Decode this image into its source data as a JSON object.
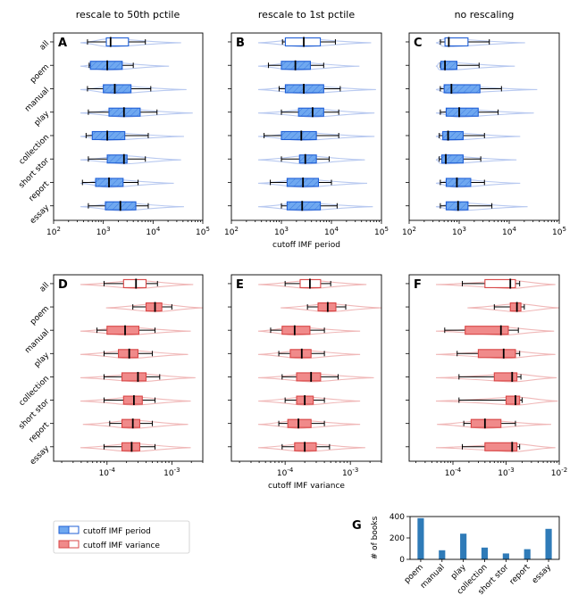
{
  "column_titles": [
    "rescale to 50th pctile",
    "rescale to 1st pctile",
    "no rescaling"
  ],
  "categories": [
    "all",
    "poem",
    "manual",
    "play",
    "collection",
    "short stor",
    "report",
    "essay"
  ],
  "colors": {
    "period_fill": "#6fa8f0",
    "period_edge": "#1f5fd6",
    "period_violin": "#b8c9f0",
    "variance_fill": "#f08a8a",
    "variance_edge": "#d84545",
    "variance_violin": "#f0b8b8",
    "bar": "#2f7bb8"
  },
  "legend": {
    "period_label": "cutoff IMF period",
    "variance_label": "cutoff IMF variance"
  },
  "chart_data": [
    {
      "panel": "A",
      "type": "box",
      "title": "rescale to 50th pctile",
      "xlabel": "",
      "xscale": "log",
      "xlim": [
        100,
        100000
      ],
      "ticks": [
        "10^2",
        "10^3",
        "10^4",
        "10^5"
      ],
      "series_name": "cutoff IMF period",
      "boxes": [
        {
          "cat": "all",
          "wlo": 480,
          "q1": 1150,
          "med": 1400,
          "q3": 3200,
          "whi": 7000
        },
        {
          "cat": "poem",
          "wlo": 520,
          "q1": 550,
          "med": 1200,
          "q3": 2400,
          "whi": 4000
        },
        {
          "cat": "manual",
          "wlo": 480,
          "q1": 1000,
          "med": 1700,
          "q3": 3600,
          "whi": 9000
        },
        {
          "cat": "play",
          "wlo": 500,
          "q1": 1300,
          "med": 2600,
          "q3": 5500,
          "whi": 12000
        },
        {
          "cat": "collection",
          "wlo": 450,
          "q1": 600,
          "med": 1200,
          "q3": 2700,
          "whi": 8000
        },
        {
          "cat": "short stor",
          "wlo": 500,
          "q1": 1200,
          "med": 2600,
          "q3": 3000,
          "whi": 7000
        },
        {
          "cat": "report",
          "wlo": 380,
          "q1": 700,
          "med": 1300,
          "q3": 2500,
          "whi": 5000
        },
        {
          "cat": "essay",
          "wlo": 500,
          "q1": 1100,
          "med": 2200,
          "q3": 4500,
          "whi": 8000
        }
      ]
    },
    {
      "panel": "B",
      "type": "box",
      "title": "rescale to 1st pctile",
      "xlabel": "cutoff IMF period",
      "xscale": "log",
      "xlim": [
        100,
        100000
      ],
      "ticks": [
        "10^2",
        "10^3",
        "10^4",
        "10^5"
      ],
      "series_name": "cutoff IMF period",
      "boxes": [
        {
          "cat": "all",
          "wlo": 1050,
          "q1": 1200,
          "med": 2800,
          "q3": 6000,
          "whi": 12000
        },
        {
          "cat": "poem",
          "wlo": 550,
          "q1": 1000,
          "med": 1900,
          "q3": 3800,
          "whi": 7000
        },
        {
          "cat": "manual",
          "wlo": 900,
          "q1": 1200,
          "med": 2800,
          "q3": 7000,
          "whi": 15000
        },
        {
          "cat": "play",
          "wlo": 1000,
          "q1": 2200,
          "med": 4200,
          "q3": 7000,
          "whi": 14000
        },
        {
          "cat": "collection",
          "wlo": 450,
          "q1": 1000,
          "med": 2500,
          "q3": 5000,
          "whi": 14000
        },
        {
          "cat": "short stor",
          "wlo": 1000,
          "q1": 2300,
          "med": 3000,
          "q3": 5000,
          "whi": 9000
        },
        {
          "cat": "report",
          "wlo": 600,
          "q1": 1300,
          "med": 2700,
          "q3": 5500,
          "whi": 10000
        },
        {
          "cat": "essay",
          "wlo": 1000,
          "q1": 1300,
          "med": 2600,
          "q3": 6000,
          "whi": 13000
        }
      ]
    },
    {
      "panel": "C",
      "type": "box",
      "title": "no rescaling",
      "xlabel": "",
      "xscale": "log",
      "xlim": [
        100,
        100000
      ],
      "ticks": [
        "10^2",
        "10^3",
        "10^4",
        "10^5"
      ],
      "series_name": "cutoff IMF period",
      "boxes": [
        {
          "cat": "all",
          "wlo": 420,
          "q1": 520,
          "med": 620,
          "q3": 1500,
          "whi": 4000
        },
        {
          "cat": "poem",
          "wlo": 420,
          "q1": 430,
          "med": 520,
          "q3": 900,
          "whi": 2500
        },
        {
          "cat": "manual",
          "wlo": 420,
          "q1": 500,
          "med": 700,
          "q3": 2600,
          "whi": 7000
        },
        {
          "cat": "play",
          "wlo": 420,
          "q1": 550,
          "med": 1000,
          "q3": 2400,
          "whi": 6000
        },
        {
          "cat": "collection",
          "wlo": 400,
          "q1": 470,
          "med": 600,
          "q3": 1200,
          "whi": 3200
        },
        {
          "cat": "short stor",
          "wlo": 400,
          "q1": 450,
          "med": 540,
          "q3": 1200,
          "whi": 2700
        },
        {
          "cat": "report",
          "wlo": 420,
          "q1": 550,
          "med": 900,
          "q3": 1700,
          "whi": 3200
        },
        {
          "cat": "essay",
          "wlo": 420,
          "q1": 550,
          "med": 950,
          "q3": 1500,
          "whi": 4500
        }
      ]
    },
    {
      "panel": "D",
      "type": "box",
      "title": "",
      "xlabel": "",
      "xscale": "log",
      "xlim": [
        1.5e-05,
        0.003
      ],
      "ticks": [
        "10^-4",
        "10^-3"
      ],
      "series_name": "cutoff IMF variance",
      "boxes": [
        {
          "cat": "all",
          "wlo": 9e-05,
          "q1": 0.00018,
          "med": 0.00028,
          "q3": 0.0004,
          "whi": 0.0006
        },
        {
          "cat": "poem",
          "wlo": 0.00025,
          "q1": 0.0004,
          "med": 0.00055,
          "q3": 0.0007,
          "whi": 0.001
        },
        {
          "cat": "manual",
          "wlo": 7e-05,
          "q1": 0.0001,
          "med": 0.00019,
          "q3": 0.00031,
          "whi": 0.00055
        },
        {
          "cat": "play",
          "wlo": 9e-05,
          "q1": 0.00015,
          "med": 0.00022,
          "q3": 0.0003,
          "whi": 0.0005
        },
        {
          "cat": "collection",
          "wlo": 9e-05,
          "q1": 0.00017,
          "med": 0.0003,
          "q3": 0.0004,
          "whi": 0.00065
        },
        {
          "cat": "short stor",
          "wlo": 9e-05,
          "q1": 0.00018,
          "med": 0.00026,
          "q3": 0.00035,
          "whi": 0.00055
        },
        {
          "cat": "report",
          "wlo": 0.00011,
          "q1": 0.00017,
          "med": 0.00025,
          "q3": 0.00032,
          "whi": 0.0005
        },
        {
          "cat": "essay",
          "wlo": 9e-05,
          "q1": 0.00017,
          "med": 0.00024,
          "q3": 0.00032,
          "whi": 0.00055
        }
      ]
    },
    {
      "panel": "E",
      "type": "box",
      "title": "",
      "xlabel": "cutoff IMF variance",
      "xscale": "log",
      "xlim": [
        1.5e-05,
        0.003
      ],
      "ticks": [
        "10^-4",
        "10^-3"
      ],
      "series_name": "cutoff IMF variance",
      "boxes": [
        {
          "cat": "all",
          "wlo": 0.0001,
          "q1": 0.00017,
          "med": 0.00024,
          "q3": 0.00035,
          "whi": 0.0005
        },
        {
          "cat": "poem",
          "wlo": 0.00022,
          "q1": 0.00032,
          "med": 0.00045,
          "q3": 0.0006,
          "whi": 0.00085
        },
        {
          "cat": "manual",
          "wlo": 6e-05,
          "q1": 9e-05,
          "med": 0.00014,
          "q3": 0.00024,
          "whi": 0.0004
        },
        {
          "cat": "play",
          "wlo": 8e-05,
          "q1": 0.00012,
          "med": 0.00018,
          "q3": 0.00025,
          "whi": 0.0004
        },
        {
          "cat": "collection",
          "wlo": 9e-05,
          "q1": 0.00015,
          "med": 0.00025,
          "q3": 0.00035,
          "whi": 0.00065
        },
        {
          "cat": "short stor",
          "wlo": 0.0001,
          "q1": 0.00015,
          "med": 0.0002,
          "q3": 0.00027,
          "whi": 0.0004
        },
        {
          "cat": "report",
          "wlo": 8e-05,
          "q1": 0.00011,
          "med": 0.00016,
          "q3": 0.00025,
          "whi": 0.0004
        },
        {
          "cat": "essay",
          "wlo": 9e-05,
          "q1": 0.00014,
          "med": 0.0002,
          "q3": 0.0003,
          "whi": 0.00048
        }
      ]
    },
    {
      "panel": "F",
      "type": "box",
      "title": "",
      "xlabel": "",
      "xscale": "log",
      "xlim": [
        1.5e-05,
        0.01
      ],
      "ticks": [
        "10^-4",
        "10^-3",
        "10^-2"
      ],
      "series_name": "cutoff IMF variance",
      "boxes": [
        {
          "cat": "all",
          "wlo": 0.00015,
          "q1": 0.0004,
          "med": 0.0012,
          "q3": 0.0015,
          "whi": 0.0018
        },
        {
          "cat": "poem",
          "wlo": 0.0006,
          "q1": 0.0012,
          "med": 0.0016,
          "q3": 0.0019,
          "whi": 0.0022
        },
        {
          "cat": "manual",
          "wlo": 7e-05,
          "q1": 0.00017,
          "med": 0.0008,
          "q3": 0.0011,
          "whi": 0.0017
        },
        {
          "cat": "play",
          "wlo": 0.00012,
          "q1": 0.0003,
          "med": 0.0009,
          "q3": 0.0015,
          "whi": 0.0018
        },
        {
          "cat": "collection",
          "wlo": 0.00013,
          "q1": 0.0006,
          "med": 0.0013,
          "q3": 0.0016,
          "whi": 0.0019
        },
        {
          "cat": "short stor",
          "wlo": 0.00013,
          "q1": 0.001,
          "med": 0.0015,
          "q3": 0.0018,
          "whi": 0.002
        },
        {
          "cat": "report",
          "wlo": 0.00016,
          "q1": 0.00022,
          "med": 0.0004,
          "q3": 0.0008,
          "whi": 0.0015
        },
        {
          "cat": "essay",
          "wlo": 0.00015,
          "q1": 0.0004,
          "med": 0.0013,
          "q3": 0.0016,
          "whi": 0.0018
        }
      ]
    },
    {
      "panel": "G",
      "type": "bar",
      "title": "",
      "ylabel": "# of books",
      "categories": [
        "poem",
        "manual",
        "play",
        "collection",
        "short stor",
        "report",
        "essay"
      ],
      "values": [
        385,
        85,
        240,
        110,
        55,
        95,
        285
      ],
      "ylim": [
        0,
        400
      ],
      "yticks": [
        0,
        200,
        400
      ]
    }
  ]
}
